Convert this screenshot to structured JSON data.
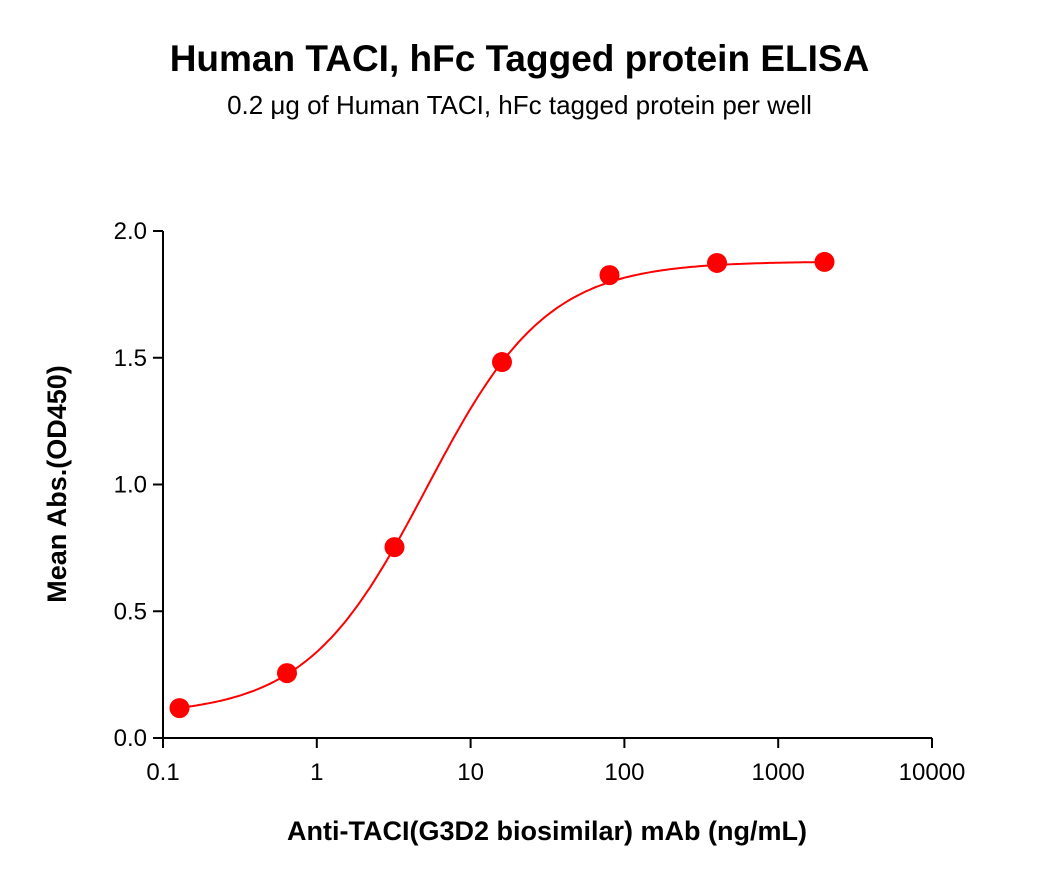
{
  "chart_data": {
    "type": "scatter",
    "title": "Human TACI, hFc Tagged protein ELISA",
    "subtitle": "0.2 μg of Human TACI, hFc tagged protein per well",
    "xlabel": "Anti-TACI(G3D2 biosimilar) mAb (ng/mL)",
    "ylabel": "Mean Abs.(OD450)",
    "xscale": "log",
    "xlim": [
      0.1,
      10000
    ],
    "ylim": [
      0,
      2.0
    ],
    "xticks": [
      "0.1",
      "1",
      "10",
      "100",
      "1000",
      "10000"
    ],
    "yticks": [
      "0.0",
      "0.5",
      "1.0",
      "1.5",
      "2.0"
    ],
    "grid": false,
    "color": "#ff0000",
    "series": [
      {
        "x": [
          0.128,
          0.64,
          3.2,
          16,
          80,
          400,
          2000
        ],
        "y": [
          0.118,
          0.256,
          0.753,
          1.483,
          1.826,
          1.874,
          1.878
        ]
      }
    ],
    "fit": {
      "model": "4PL",
      "bottom": 0.09,
      "top": 1.88,
      "ec50": 5.16,
      "hill": 1.109
    }
  }
}
